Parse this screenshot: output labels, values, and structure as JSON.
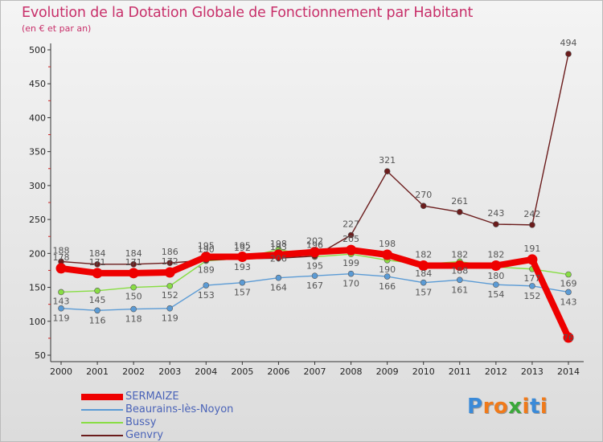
{
  "header": {
    "title": "Evolution de la Dotation Globale de Fonctionnement par Habitant",
    "subtitle": "(en € et par an)"
  },
  "brand": {
    "text": "Proxiti",
    "letters": [
      "P",
      "r",
      "o",
      "x",
      "i",
      "t",
      "i"
    ],
    "colors": [
      "#3a8ad8",
      "#f07a1a",
      "#f07a1a",
      "#3aa83a",
      "#f07a1a",
      "#3a8ad8",
      "#f07a1a"
    ]
  },
  "chart_data": {
    "type": "line",
    "x": [
      "2000",
      "2001",
      "2002",
      "2003",
      "2004",
      "2005",
      "2006",
      "2007",
      "2008",
      "2009",
      "2010",
      "2011",
      "2012",
      "2013",
      "2014"
    ],
    "ylim": [
      50,
      500
    ],
    "yticks": [
      50,
      100,
      150,
      200,
      250,
      300,
      350,
      400,
      450,
      500
    ],
    "grid": false,
    "legend_position": "bottom-left",
    "series": [
      {
        "name": "SERMAIZE",
        "color": "#ee0000",
        "values": [
          178,
          171,
          171,
          172,
          195,
          195,
          198,
          202,
          205,
          198,
          182,
          182,
          182,
          191,
          76
        ]
      },
      {
        "name": "Beaurains-lès-Noyon",
        "color": "#5b9bd5",
        "values": [
          119,
          116,
          118,
          119,
          153,
          157,
          164,
          167,
          170,
          166,
          157,
          161,
          154,
          152,
          143
        ]
      },
      {
        "name": "Bussy",
        "color": "#88dd44",
        "values": [
          143,
          145,
          150,
          152,
          189,
          193,
          206,
          195,
          199,
          190,
          184,
          188,
          180,
          177,
          169
        ]
      },
      {
        "name": "Genvry",
        "color": "#6b1c1c",
        "values": [
          188,
          184,
          184,
          186,
          190,
          192,
          193,
          196,
          227,
          321,
          270,
          261,
          243,
          242,
          494
        ]
      }
    ],
    "data_labels": [
      {
        "series": "SERMAIZE",
        "values": [
          178,
          171,
          171,
          172,
          195,
          195,
          198,
          202,
          205,
          198,
          182,
          182,
          182,
          191,
          76
        ]
      },
      {
        "series": "Beaurains-lès-Noyon",
        "values": [
          119,
          116,
          118,
          119,
          153,
          157,
          164,
          167,
          170,
          166,
          157,
          161,
          154,
          152,
          143
        ]
      },
      {
        "series": "Bussy",
        "values": [
          143,
          145,
          150,
          152,
          189,
          193,
          206,
          195,
          199,
          190,
          184,
          188,
          180,
          177,
          169
        ]
      },
      {
        "series": "Genvry",
        "values": [
          188,
          184,
          184,
          186,
          190,
          192,
          193,
          196,
          227,
          321,
          270,
          261,
          243,
          242,
          494
        ]
      }
    ]
  }
}
